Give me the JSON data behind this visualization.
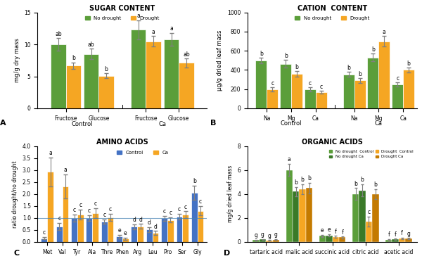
{
  "sugar": {
    "title": "SUGAR CONTENT",
    "ylabel": "mg/g dry mass",
    "ylim": [
      0,
      15
    ],
    "yticks": [
      0,
      5,
      10,
      15
    ],
    "groups": [
      "Control",
      "Ca"
    ],
    "categories": [
      "Fructose",
      "Glucose"
    ],
    "no_drought": [
      10.0,
      8.5,
      12.3,
      10.8
    ],
    "drought": [
      6.7,
      5.1,
      10.5,
      7.1
    ],
    "no_drought_err": [
      1.0,
      0.8,
      1.5,
      1.0
    ],
    "drought_err": [
      0.5,
      0.4,
      0.8,
      0.7
    ],
    "labels_nd": [
      "ab",
      "ab",
      "a",
      "a"
    ],
    "labels_d": [
      "b",
      "b",
      "a",
      "ab"
    ]
  },
  "cation": {
    "title": "CATION  CONTENT",
    "ylabel": "µg/g dried leaf mass",
    "ylim": [
      0,
      1000
    ],
    "yticks": [
      0.0,
      200.0,
      400.0,
      600.0,
      800.0,
      1000.0
    ],
    "groups": [
      "Control",
      "Ca"
    ],
    "categories": [
      "Na",
      "Mg",
      "Ca"
    ],
    "no_drought": [
      500,
      465,
      198,
      355,
      530,
      248
    ],
    "drought": [
      198,
      360,
      168,
      290,
      700,
      400
    ],
    "no_drought_err": [
      30,
      40,
      20,
      25,
      40,
      20
    ],
    "drought_err": [
      20,
      30,
      15,
      25,
      55,
      25
    ],
    "labels_nd": [
      "b",
      "b",
      "c",
      "b",
      "b",
      "c"
    ],
    "labels_d": [
      "c",
      "b",
      "c",
      "b",
      "a",
      "b"
    ]
  },
  "amino": {
    "title": "AMINO ACIDS",
    "ylabel": "ratio drought/no drought",
    "ylim": [
      0,
      4.0
    ],
    "yticks": [
      0.0,
      0.5,
      1.0,
      1.5,
      2.0,
      2.5,
      3.0,
      3.5,
      4.0
    ],
    "categories": [
      "Met",
      "Val",
      "Tyr",
      "Ala",
      "Thre",
      "Phen",
      "Arg",
      "Leu",
      "Pro",
      "Ser",
      "Gly"
    ],
    "control": [
      0.15,
      0.65,
      1.0,
      1.0,
      0.85,
      0.22,
      0.63,
      0.52,
      0.98,
      1.05,
      2.05
    ],
    "ca": [
      2.92,
      2.32,
      1.15,
      1.2,
      1.02,
      0.13,
      0.65,
      0.38,
      0.92,
      1.13,
      1.3
    ],
    "control_err": [
      0.05,
      0.15,
      0.15,
      0.12,
      0.1,
      0.08,
      0.1,
      0.1,
      0.1,
      0.12,
      0.3
    ],
    "ca_err": [
      0.6,
      0.5,
      0.2,
      0.2,
      0.15,
      0.05,
      0.1,
      0.08,
      0.1,
      0.15,
      0.2
    ],
    "labels_ctrl": [
      "c",
      "c",
      "c",
      "c",
      "c",
      "e",
      "d",
      "d",
      "c",
      "c",
      "b"
    ],
    "labels_ca": [
      "a",
      "a",
      "c",
      "c",
      "c",
      "e",
      "d",
      "d",
      "c",
      "c",
      "c"
    ]
  },
  "organic": {
    "title": "ORGANIC ACIDS",
    "ylabel": "mg/g dried leaf mass",
    "ylim": [
      0,
      8.0
    ],
    "yticks": [
      0.0,
      2.0,
      4.0,
      6.0,
      8.0
    ],
    "categories": [
      "tartaric acid",
      "malic acid",
      "succinic acid",
      "citric acid",
      "acetic acid"
    ],
    "nd_ctrl": [
      0.15,
      6.0,
      0.5,
      4.0,
      0.18
    ],
    "nd_ca": [
      0.2,
      4.2,
      0.55,
      4.3,
      0.22
    ],
    "d_ctrl": [
      0.12,
      4.4,
      0.42,
      1.7,
      0.3
    ],
    "d_ca": [
      0.18,
      4.5,
      0.38,
      4.0,
      0.28
    ],
    "nd_ctrl_err": [
      0.04,
      0.5,
      0.1,
      0.5,
      0.05
    ],
    "nd_ca_err": [
      0.05,
      0.4,
      0.1,
      0.5,
      0.05
    ],
    "d_ctrl_err": [
      0.03,
      0.4,
      0.08,
      0.4,
      0.06
    ],
    "d_ca_err": [
      0.04,
      0.45,
      0.07,
      0.4,
      0.05
    ],
    "labels_nd_ctrl": [
      "g",
      "a",
      "e",
      "b",
      "f"
    ],
    "labels_nd_ca": [
      "g",
      "b",
      "e",
      "b",
      "f"
    ],
    "labels_d_ctrl": [
      "g",
      "b",
      "f",
      "c",
      "f"
    ],
    "labels_d_ca": [
      "g",
      "b",
      "f",
      "b",
      "g"
    ]
  },
  "colors": {
    "no_drought_green": "#5B9E3A",
    "drought_orange": "#F5A623",
    "control_blue": "#4472C4",
    "ca_orange": "#F5A623",
    "nd_ca_dark_green": "#3A7A28",
    "d_ca_dark_orange": "#C47A00"
  }
}
